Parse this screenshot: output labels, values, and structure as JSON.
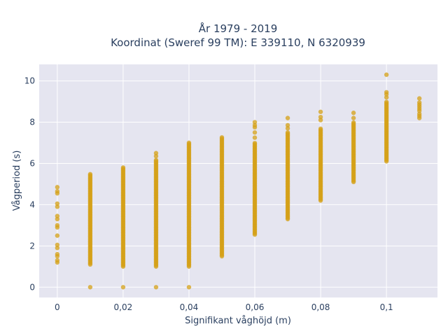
{
  "chart_data": {
    "type": "scatter",
    "title_line1": "År 1979 - 2019",
    "title_line2": "Koordinat (Sweref 99 TM): E 339110, N 6320939",
    "xlabel": "Signifikant våghöjd (m)",
    "ylabel": "Vågperiod (s)",
    "xlim": [
      -0.0055,
      0.1155
    ],
    "ylim": [
      -0.5,
      10.8
    ],
    "x_ticks": [
      0,
      0.02,
      0.04,
      0.06,
      0.08,
      0.1
    ],
    "x_tick_labels": [
      "0",
      "0,02",
      "0,04",
      "0,06",
      "0,08",
      "0,1"
    ],
    "y_ticks": [
      0,
      2,
      4,
      6,
      8,
      10
    ],
    "y_tick_labels": [
      "0",
      "2",
      "4",
      "6",
      "8",
      "10"
    ],
    "grid": true,
    "marker_color": "#d4a017",
    "background_color": "#e5e5f0",
    "columns": [
      {
        "x": 0,
        "ranges": [],
        "points": [
          1.2,
          1.3,
          1.5,
          1.6,
          1.9,
          2.05,
          2.5,
          2.9,
          3.0,
          3.3,
          3.45,
          3.9,
          4.05,
          4.55,
          4.65,
          4.85
        ]
      },
      {
        "x": 0.01,
        "ranges": [
          [
            1.1,
            5.5
          ]
        ],
        "points": [
          0.0
        ]
      },
      {
        "x": 0.02,
        "ranges": [
          [
            1.0,
            5.85
          ]
        ],
        "points": [
          0.0
        ]
      },
      {
        "x": 0.03,
        "ranges": [
          [
            1.0,
            6.2
          ]
        ],
        "points": [
          0.0,
          6.5,
          6.35
        ]
      },
      {
        "x": 0.04,
        "ranges": [
          [
            1.0,
            7.0
          ]
        ],
        "points": [
          0.0
        ]
      },
      {
        "x": 0.05,
        "ranges": [
          [
            1.5,
            7.3
          ]
        ],
        "points": []
      },
      {
        "x": 0.06,
        "ranges": [
          [
            2.55,
            7.0
          ]
        ],
        "points": [
          7.25,
          7.5,
          7.75,
          7.85,
          8.0
        ]
      },
      {
        "x": 0.07,
        "ranges": [
          [
            3.3,
            7.5
          ]
        ],
        "points": [
          7.7,
          7.85,
          8.2
        ]
      },
      {
        "x": 0.08,
        "ranges": [
          [
            4.2,
            7.7
          ]
        ],
        "points": [
          8.1,
          8.25,
          8.5
        ]
      },
      {
        "x": 0.09,
        "ranges": [
          [
            5.1,
            8.0
          ]
        ],
        "points": [
          8.2,
          8.45
        ]
      },
      {
        "x": 0.1,
        "ranges": [
          [
            6.1,
            9.0
          ]
        ],
        "points": [
          9.2,
          9.35,
          9.45,
          10.3
        ]
      },
      {
        "x": 0.11,
        "ranges": [],
        "points": [
          8.2,
          8.3,
          8.4,
          8.55,
          8.65,
          8.75,
          8.85,
          8.95,
          9.15
        ]
      }
    ]
  }
}
